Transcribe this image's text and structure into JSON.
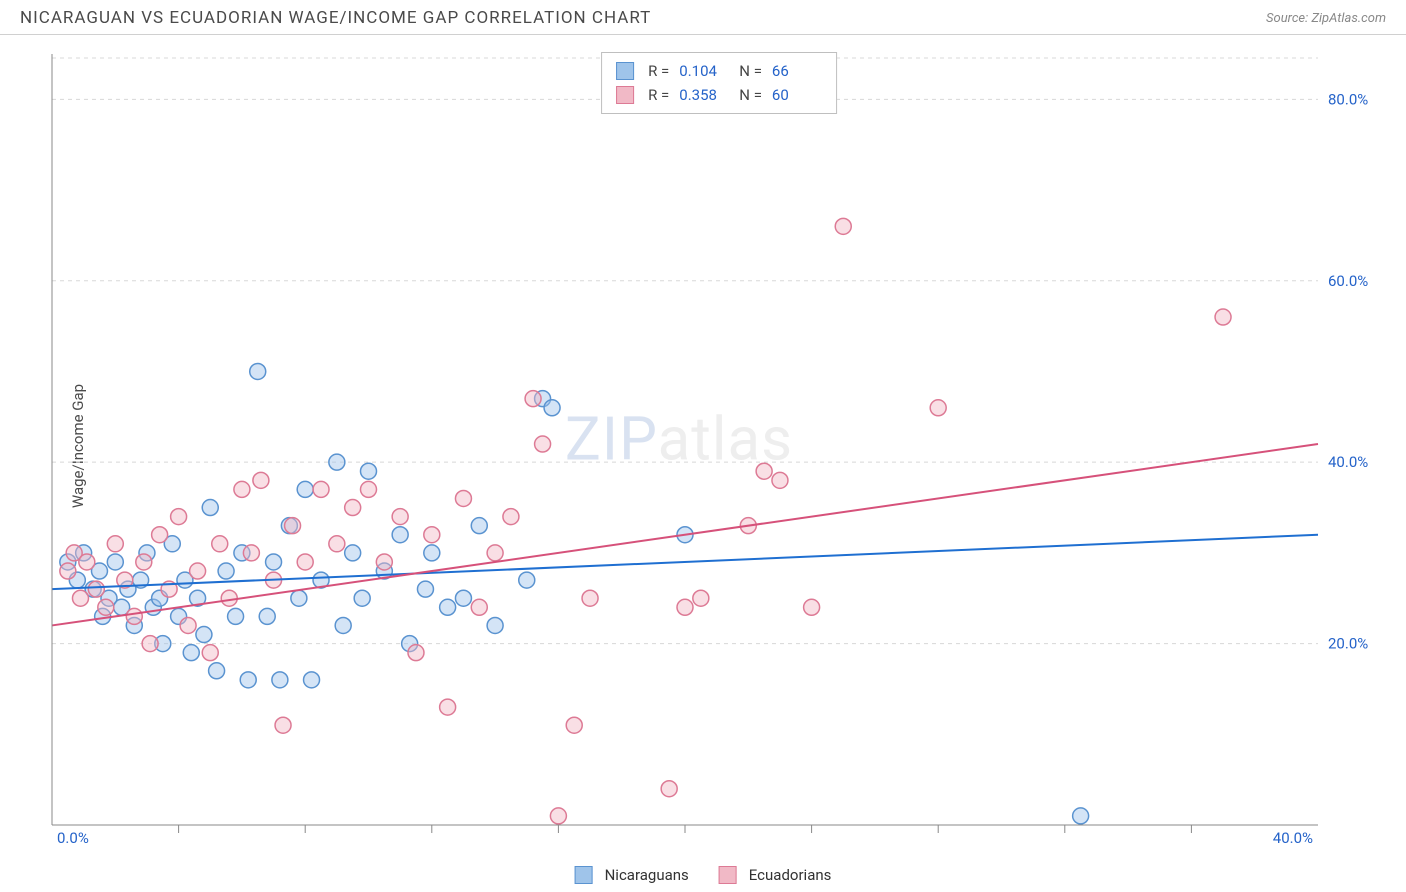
{
  "header": {
    "title": "NICARAGUAN VS ECUADORIAN WAGE/INCOME GAP CORRELATION CHART",
    "source_prefix": "Source: ",
    "source_name": "ZipAtlas.com"
  },
  "ylabel": "Wage/Income Gap",
  "watermark": {
    "part1": "ZIP",
    "part2": "atlas"
  },
  "chart": {
    "type": "scatter",
    "xlim": [
      0,
      40
    ],
    "ylim": [
      0,
      85
    ],
    "x_ticks": [
      0,
      40
    ],
    "x_tick_labels": [
      "0.0%",
      "40.0%"
    ],
    "x_minor_ticks": [
      4,
      8,
      12,
      16,
      20,
      24,
      28,
      32,
      36
    ],
    "y_ticks": [
      20,
      40,
      60,
      80
    ],
    "y_tick_labels": [
      "20.0%",
      "40.0%",
      "60.0%",
      "80.0%"
    ],
    "background_color": "#ffffff",
    "grid_color": "#d8d8d8",
    "marker_radius": 8,
    "series": [
      {
        "name": "Nicaraguans",
        "fill": "#9fc4ea",
        "stroke": "#5a93d0",
        "R": "0.104",
        "N": "66",
        "trend": {
          "x1": 0,
          "y1": 26,
          "x2": 40,
          "y2": 32,
          "color": "#1f6fd1"
        },
        "points": [
          [
            0.5,
            29
          ],
          [
            0.8,
            27
          ],
          [
            1.0,
            30
          ],
          [
            1.3,
            26
          ],
          [
            1.5,
            28
          ],
          [
            1.6,
            23
          ],
          [
            1.8,
            25
          ],
          [
            2.0,
            29
          ],
          [
            2.2,
            24
          ],
          [
            2.4,
            26
          ],
          [
            2.6,
            22
          ],
          [
            2.8,
            27
          ],
          [
            3.0,
            30
          ],
          [
            3.2,
            24
          ],
          [
            3.4,
            25
          ],
          [
            3.5,
            20
          ],
          [
            3.8,
            31
          ],
          [
            4.0,
            23
          ],
          [
            4.2,
            27
          ],
          [
            4.4,
            19
          ],
          [
            4.6,
            25
          ],
          [
            4.8,
            21
          ],
          [
            5.0,
            35
          ],
          [
            5.2,
            17
          ],
          [
            5.5,
            28
          ],
          [
            5.8,
            23
          ],
          [
            6.0,
            30
          ],
          [
            6.2,
            16
          ],
          [
            6.5,
            50
          ],
          [
            6.8,
            23
          ],
          [
            7.0,
            29
          ],
          [
            7.2,
            16
          ],
          [
            7.5,
            33
          ],
          [
            7.8,
            25
          ],
          [
            8.0,
            37
          ],
          [
            8.2,
            16
          ],
          [
            8.5,
            27
          ],
          [
            9.0,
            40
          ],
          [
            9.2,
            22
          ],
          [
            9.5,
            30
          ],
          [
            9.8,
            25
          ],
          [
            10.0,
            39
          ],
          [
            10.5,
            28
          ],
          [
            11.0,
            32
          ],
          [
            11.3,
            20
          ],
          [
            11.8,
            26
          ],
          [
            12.0,
            30
          ],
          [
            12.5,
            24
          ],
          [
            13.0,
            25
          ],
          [
            13.5,
            33
          ],
          [
            14.0,
            22
          ],
          [
            15.0,
            27
          ],
          [
            15.5,
            47
          ],
          [
            15.8,
            46
          ],
          [
            20.0,
            32
          ],
          [
            32.5,
            1
          ]
        ]
      },
      {
        "name": "Ecuadorians",
        "fill": "#f1b9c6",
        "stroke": "#dd7a95",
        "R": "0.358",
        "N": "60",
        "trend": {
          "x1": 0,
          "y1": 22,
          "x2": 40,
          "y2": 42,
          "color": "#d6517a"
        },
        "points": [
          [
            0.5,
            28
          ],
          [
            0.7,
            30
          ],
          [
            0.9,
            25
          ],
          [
            1.1,
            29
          ],
          [
            1.4,
            26
          ],
          [
            1.7,
            24
          ],
          [
            2.0,
            31
          ],
          [
            2.3,
            27
          ],
          [
            2.6,
            23
          ],
          [
            2.9,
            29
          ],
          [
            3.1,
            20
          ],
          [
            3.4,
            32
          ],
          [
            3.7,
            26
          ],
          [
            4.0,
            34
          ],
          [
            4.3,
            22
          ],
          [
            4.6,
            28
          ],
          [
            5.0,
            19
          ],
          [
            5.3,
            31
          ],
          [
            5.6,
            25
          ],
          [
            6.0,
            37
          ],
          [
            6.3,
            30
          ],
          [
            6.6,
            38
          ],
          [
            7.0,
            27
          ],
          [
            7.3,
            11
          ],
          [
            7.6,
            33
          ],
          [
            8.0,
            29
          ],
          [
            8.5,
            37
          ],
          [
            9.0,
            31
          ],
          [
            9.5,
            35
          ],
          [
            10.0,
            37
          ],
          [
            10.5,
            29
          ],
          [
            11.0,
            34
          ],
          [
            11.5,
            19
          ],
          [
            12.0,
            32
          ],
          [
            12.5,
            13
          ],
          [
            13.0,
            36
          ],
          [
            13.5,
            24
          ],
          [
            14.0,
            30
          ],
          [
            14.5,
            34
          ],
          [
            15.2,
            47
          ],
          [
            15.5,
            42
          ],
          [
            16.0,
            1
          ],
          [
            16.5,
            11
          ],
          [
            17.0,
            25
          ],
          [
            19.5,
            4
          ],
          [
            20.0,
            24
          ],
          [
            20.5,
            25
          ],
          [
            22.0,
            33
          ],
          [
            22.5,
            39
          ],
          [
            23.0,
            38
          ],
          [
            24.0,
            24
          ],
          [
            25.0,
            66
          ],
          [
            28.0,
            46
          ],
          [
            37.0,
            56
          ]
        ]
      }
    ]
  },
  "legend": {
    "series1": "Nicaraguans",
    "series2": "Ecuadorians"
  }
}
